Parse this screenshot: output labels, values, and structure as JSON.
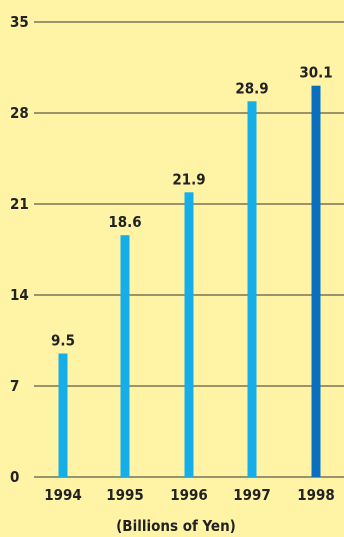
{
  "chart_data": {
    "type": "bar",
    "title": "",
    "xlabel": "(Billions of Yen)",
    "ylabel": "",
    "categories": [
      "1994",
      "1995",
      "1996",
      "1997",
      "1998"
    ],
    "values": [
      9.5,
      18.6,
      21.9,
      28.9,
      30.1
    ],
    "data_labels": [
      "9.5",
      "18.6",
      "21.9",
      "28.9",
      "30.1"
    ],
    "ylim": [
      0,
      35
    ],
    "yticks": [
      0,
      7,
      14,
      21,
      28,
      35
    ],
    "grid": true,
    "legend": "none",
    "colors": {
      "background": "#fff4a6",
      "bar": "#16aee8",
      "bar_highlight": "#0a6fbf",
      "grid": "#333333"
    }
  }
}
